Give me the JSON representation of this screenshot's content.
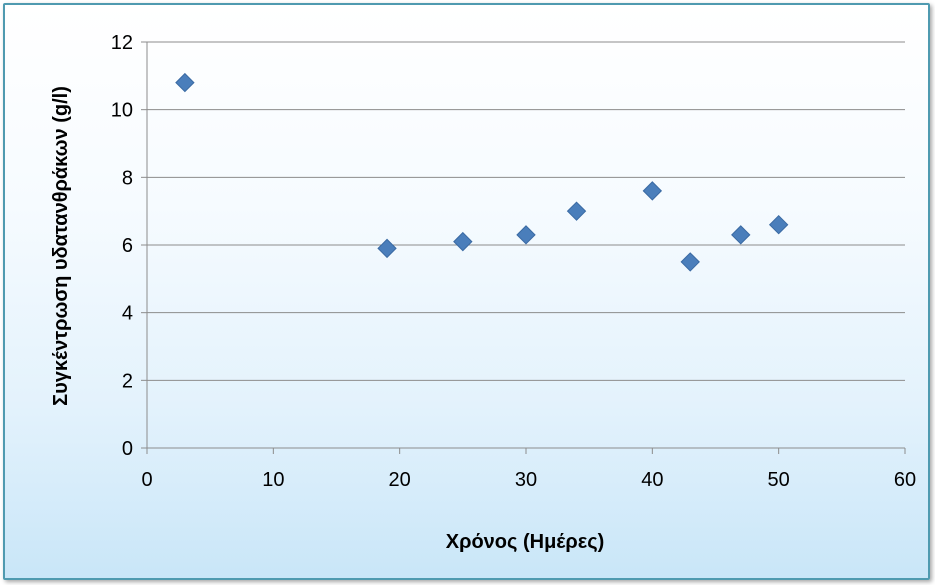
{
  "chart_data": {
    "type": "scatter",
    "title": "",
    "xlabel": "Χρόνος (Ημέρες)",
    "ylabel": "Συγκέντρωση υδατανθράκων (g/l)",
    "xlim": [
      0,
      60
    ],
    "ylim": [
      0,
      12
    ],
    "xticks": [
      0,
      10,
      20,
      30,
      40,
      50,
      60
    ],
    "yticks": [
      0,
      2,
      4,
      6,
      8,
      10,
      12
    ],
    "grid": "horizontal",
    "legend": "none",
    "marker": "diamond",
    "marker_color": "#4a7ebb",
    "series": [
      {
        "x": [
          3,
          19,
          25,
          30,
          34,
          40,
          43,
          47,
          50
        ],
        "y": [
          10.8,
          5.9,
          6.1,
          6.3,
          7.0,
          7.6,
          5.5,
          6.3,
          6.6
        ]
      }
    ]
  }
}
